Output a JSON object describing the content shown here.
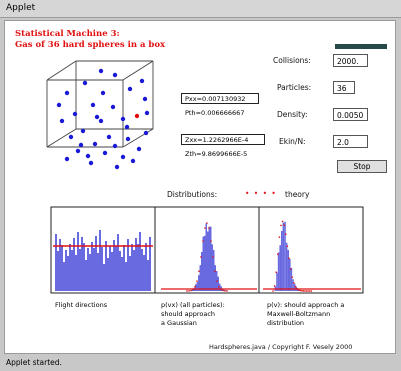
{
  "window": {
    "menu_title": "Applet"
  },
  "title": {
    "line1": "Statistical Machine 3:",
    "line2": "Gas of 36 hard spheres in a box"
  },
  "controls": {
    "collisions": {
      "label": "Collisions:",
      "value": "2000."
    },
    "particles": {
      "label": "Particles:",
      "value": "36"
    },
    "density": {
      "label": "Density:",
      "value": "0.0050"
    },
    "ekin": {
      "label": "Ekin/N:",
      "value": "2.0"
    },
    "stop_label": "Stop"
  },
  "values": {
    "pxx": "Pxx=0.00713093​2",
    "pth": "Pth=0.00666666​7",
    "zxx": "Zxx=1.2262966E-4",
    "zth": "Zth=9.8699666E-5"
  },
  "distributions": {
    "label": "Distributions:",
    "legend_dots": "• • • •",
    "legend_theory": "theory"
  },
  "captions": {
    "c1": "Flight directions",
    "c2_1": "p(vx) (all particles):",
    "c2_2": "should approach",
    "c2_3": "a Gaussian",
    "c3_1": "p(v): should approach a",
    "c3_2": "Maxwell-Boltzmann",
    "c3_3": "distribution"
  },
  "footer": {
    "copyright": "Hardspheres.java / Copyright F. Vesely 2000"
  },
  "status": {
    "text": "Applet started."
  },
  "colors": {
    "title": "#e01010",
    "particle": "#1a1ad6",
    "histogram": "#6a6ae0",
    "theory": "#e01010",
    "progress": "#264a4a"
  },
  "particles_count": 36
}
